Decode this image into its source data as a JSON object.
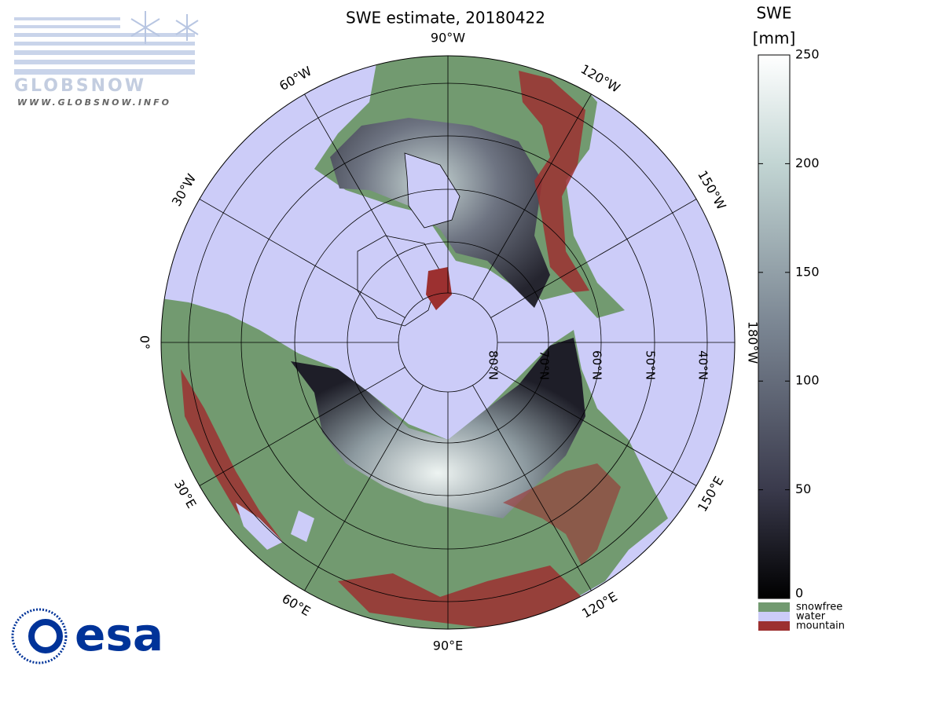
{
  "title": "SWE estimate, 20180422",
  "colorbar": {
    "label": "SWE",
    "unit": "[mm]",
    "range": [
      0,
      250
    ],
    "ticks": [
      0,
      50,
      100,
      150,
      200,
      250
    ]
  },
  "legend": [
    {
      "label": "snowfree",
      "color": "#729a70"
    },
    {
      "label": "water",
      "color": "#ccccf8"
    },
    {
      "label": "mountain",
      "color": "#9c3030"
    }
  ],
  "longitude_labels": [
    "90°W",
    "120°W",
    "150°W",
    "180°W",
    "150°E",
    "120°E",
    "90°E",
    "60°E",
    "30°E",
    "0°",
    "30°W",
    "60°W"
  ],
  "latitude_labels": [
    "80°N",
    "70°N",
    "60°N",
    "50°N",
    "40°N"
  ],
  "logos": {
    "globsnow": "GLOBSNOW",
    "globsnow_url": "WWW.GLOBSNOW.INFO",
    "esa": "esa"
  }
}
